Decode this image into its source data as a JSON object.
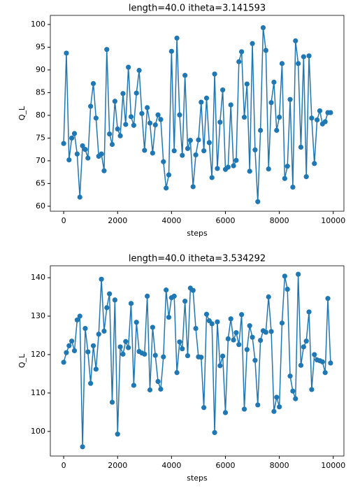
{
  "chart_data": [
    {
      "type": "line",
      "title": "length=40.0 itheta=3.141593",
      "x_label": "steps",
      "y_label": "Q_L",
      "x": [
        0,
        100,
        200,
        300,
        400,
        500,
        600,
        700,
        800,
        900,
        1000,
        1100,
        1200,
        1300,
        1400,
        1500,
        1600,
        1700,
        1800,
        1900,
        2000,
        2100,
        2200,
        2300,
        2400,
        2500,
        2600,
        2700,
        2800,
        2900,
        3000,
        3100,
        3200,
        3300,
        3400,
        3500,
        3600,
        3700,
        3800,
        3900,
        4000,
        4100,
        4200,
        4300,
        4400,
        4500,
        4600,
        4700,
        4800,
        4900,
        5000,
        5100,
        5200,
        5300,
        5400,
        5500,
        5600,
        5700,
        5800,
        5900,
        6000,
        6100,
        6200,
        6300,
        6400,
        6500,
        6600,
        6700,
        6800,
        6900,
        7000,
        7100,
        7200,
        7300,
        7400,
        7500,
        7600,
        7700,
        7800,
        7900,
        8000,
        8100,
        8200,
        8300,
        8400,
        8500,
        8600,
        8700,
        8800,
        8900,
        9000,
        9100,
        9200,
        9300,
        9400,
        9500,
        9600,
        9700,
        9800,
        9900
      ],
      "series": [
        {
          "name": "Q_L",
          "color": "#1f77b4",
          "values": [
            73.8,
            93.7,
            70.2,
            75,
            76,
            71.5,
            62,
            73.3,
            72.5,
            70.6,
            82,
            87,
            79.4,
            71,
            71.5,
            67.8,
            94.5,
            75.9,
            73.6,
            83.1,
            77,
            75.5,
            84.8,
            78,
            90.6,
            79.7,
            77.8,
            84.9,
            89.9,
            80.4,
            72.3,
            81.7,
            78.3,
            71.7,
            77.9,
            80.1,
            79.1,
            69.8,
            64,
            66.9,
            94.1,
            72.2,
            97,
            80.1,
            71.2,
            88.8,
            72.7,
            74.5,
            64.3,
            71.3,
            74.6,
            82.9,
            72.2,
            83.8,
            74,
            66.3,
            89.1,
            68.3,
            78.5,
            85.6,
            68.1,
            68.6,
            82.3,
            68.9,
            70.1,
            91.8,
            94,
            79.6,
            86.9,
            67.7,
            95.8,
            72.4,
            61,
            76.7,
            99.3,
            94.3,
            68.2,
            82.8,
            87.3,
            76.7,
            79.6,
            91.4,
            66.1,
            68.8,
            83.5,
            64.2,
            96.4,
            91.4,
            73,
            92.9,
            66.5,
            93.1,
            79.4,
            69.4,
            79,
            81,
            78.1,
            78.6,
            80.6,
            80.6
          ]
        }
      ],
      "xlim": [
        -495,
        10395
      ],
      "xticks": [
        0,
        2000,
        4000,
        6000,
        8000,
        10000
      ],
      "ylim": [
        58.9,
        102
      ],
      "yticks": [
        60,
        65,
        70,
        75,
        80,
        85,
        90,
        95,
        100
      ]
    },
    {
      "type": "line",
      "title": "length=40.0 itheta=3.534292",
      "x_label": "steps",
      "y_label": "Q_L",
      "x": [
        0,
        100,
        200,
        300,
        400,
        500,
        600,
        700,
        800,
        900,
        1000,
        1100,
        1200,
        1300,
        1400,
        1500,
        1600,
        1700,
        1800,
        1900,
        2000,
        2100,
        2200,
        2300,
        2400,
        2500,
        2600,
        2700,
        2800,
        2900,
        3000,
        3100,
        3200,
        3300,
        3400,
        3500,
        3600,
        3700,
        3800,
        3900,
        4000,
        4100,
        4200,
        4300,
        4400,
        4500,
        4600,
        4700,
        4800,
        4900,
        5000,
        5100,
        5200,
        5300,
        5400,
        5500,
        5600,
        5700,
        5800,
        5900,
        6000,
        6100,
        6200,
        6300,
        6400,
        6500,
        6600,
        6700,
        6800,
        6900,
        7000,
        7100,
        7200,
        7300,
        7400,
        7500,
        7600,
        7700,
        7800,
        7900,
        8000,
        8100,
        8200,
        8300,
        8400,
        8500,
        8600,
        8700,
        8800,
        8900,
        9000,
        9100,
        9200,
        9300,
        9400,
        9500,
        9600,
        9700,
        9800,
        9900
      ],
      "series": [
        {
          "name": "Q_L",
          "color": "#1f77b4",
          "values": [
            118,
            120.5,
            122.3,
            123.5,
            121,
            129,
            130,
            96,
            126.8,
            120.7,
            112.5,
            122.3,
            116.2,
            125.3,
            139.6,
            126.1,
            132.2,
            135.8,
            107.6,
            134.2,
            99.3,
            122,
            120.1,
            123.4,
            121.8,
            133.3,
            112,
            128.4,
            120.8,
            120.4,
            120.1,
            135.2,
            110.8,
            127.1,
            119.8,
            113,
            111,
            119.4,
            136.8,
            129.7,
            134.8,
            135.2,
            115.3,
            123.3,
            121.5,
            133.9,
            119.7,
            137.3,
            136.7,
            126.8,
            119.4,
            119.3,
            106.2,
            130.5,
            128.8,
            128,
            99.7,
            128.5,
            117.1,
            119.6,
            104.9,
            124.1,
            129.3,
            123.8,
            125.7,
            122.6,
            130.4,
            105.8,
            121.3,
            127.5,
            124.5,
            118.5,
            106.9,
            123.7,
            126.2,
            125.8,
            135,
            126,
            105.2,
            108.9,
            106.4,
            128.2,
            140.4,
            137,
            114.4,
            110.5,
            108.5,
            140.9,
            117.2,
            122,
            123.5,
            131.1,
            110.9,
            120,
            118.6,
            118.4,
            118.1,
            115.3,
            134.6,
            117.8
          ]
        }
      ],
      "xlim": [
        -495,
        10395
      ],
      "xticks": [
        0,
        2000,
        4000,
        6000,
        8000,
        10000
      ],
      "ylim": [
        93.6,
        143.1
      ],
      "yticks": [
        100,
        110,
        120,
        130,
        140
      ]
    }
  ]
}
